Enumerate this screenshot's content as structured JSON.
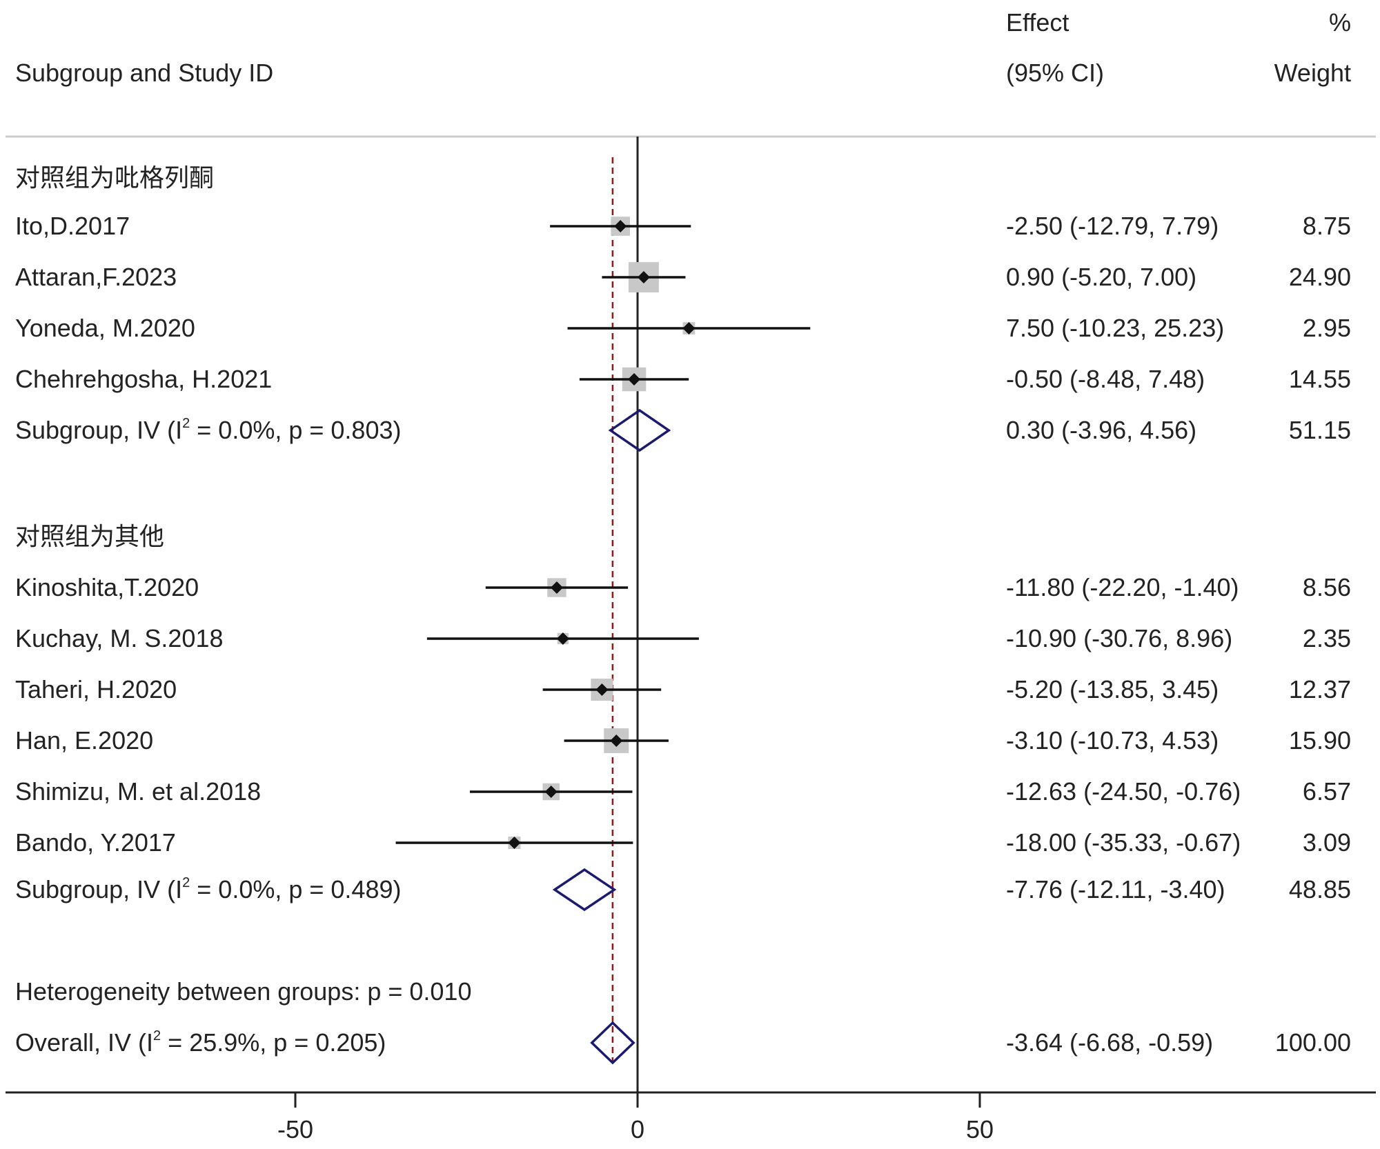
{
  "chart_data": {
    "type": "forest",
    "header": {
      "label_col": "Subgroup and Study ID",
      "effect_line1": "Effect",
      "effect_line2": "(95% CI)",
      "weight_line1": "%",
      "weight_line2": "Weight"
    },
    "x_axis": {
      "range": [
        -92,
        108
      ],
      "ticks": [
        -50,
        0,
        50
      ],
      "tick_labels": [
        "-50",
        "0",
        "50"
      ],
      "null_value": 0,
      "overall_reference": -3.64
    },
    "rows": [
      {
        "kind": "group",
        "label": "对照组为吡格列酮"
      },
      {
        "kind": "study",
        "label": "Ito,D.2017",
        "effect": -2.5,
        "lower": -12.79,
        "upper": 7.79,
        "effect_text": "-2.50 (-12.79, 7.79)",
        "weight": 8.75,
        "weight_text": "8.75"
      },
      {
        "kind": "study",
        "label": "Attaran,F.2023",
        "effect": 0.9,
        "lower": -5.2,
        "upper": 7.0,
        "effect_text": "0.90 (-5.20, 7.00)",
        "weight": 24.9,
        "weight_text": "24.90"
      },
      {
        "kind": "study",
        "label": "Yoneda, M.2020",
        "effect": 7.5,
        "lower": -10.23,
        "upper": 25.23,
        "effect_text": "7.50 (-10.23, 25.23)",
        "weight": 2.95,
        "weight_text": "2.95"
      },
      {
        "kind": "study",
        "label": "Chehrehgosha, H.2021",
        "effect": -0.5,
        "lower": -8.48,
        "upper": 7.48,
        "effect_text": "-0.50 (-8.48, 7.48)",
        "weight": 14.55,
        "weight_text": "14.55"
      },
      {
        "kind": "subtotal",
        "label_pre": "Subgroup, IV (I",
        "label_sup": "2",
        "label_post": " = 0.0%, p = 0.803)",
        "effect": 0.3,
        "lower": -3.96,
        "upper": 4.56,
        "effect_text": "0.30 (-3.96, 4.56)",
        "weight": 51.15,
        "weight_text": "51.15"
      },
      {
        "kind": "blank"
      },
      {
        "kind": "group",
        "label": "对照组为其他"
      },
      {
        "kind": "study",
        "label": "Kinoshita,T.2020",
        "effect": -11.8,
        "lower": -22.2,
        "upper": -1.4,
        "effect_text": "-11.80 (-22.20, -1.40)",
        "weight": 8.56,
        "weight_text": "8.56"
      },
      {
        "kind": "study",
        "label": "Kuchay, M. S.2018",
        "effect": -10.9,
        "lower": -30.76,
        "upper": 8.96,
        "effect_text": "-10.90 (-30.76, 8.96)",
        "weight": 2.35,
        "weight_text": "2.35"
      },
      {
        "kind": "study",
        "label": "Taheri, H.2020",
        "effect": -5.2,
        "lower": -13.85,
        "upper": 3.45,
        "effect_text": "-5.20 (-13.85, 3.45)",
        "weight": 12.37,
        "weight_text": "12.37"
      },
      {
        "kind": "study",
        "label": "Han, E.2020",
        "effect": -3.1,
        "lower": -10.73,
        "upper": 4.53,
        "effect_text": "-3.10 (-10.73, 4.53)",
        "weight": 15.9,
        "weight_text": "15.90"
      },
      {
        "kind": "study",
        "label": "Shimizu, M. et al.2018",
        "effect": -12.63,
        "lower": -24.5,
        "upper": -0.76,
        "effect_text": "-12.63 (-24.50, -0.76)",
        "weight": 6.57,
        "weight_text": "6.57"
      },
      {
        "kind": "study",
        "label": "Bando, Y.2017",
        "effect": -18.0,
        "lower": -35.33,
        "upper": -0.67,
        "effect_text": "-18.00 (-35.33, -0.67)",
        "weight": 3.09,
        "weight_text": "3.09"
      },
      {
        "kind": "subtotal",
        "label_pre": "Subgroup, IV (I",
        "label_sup": "2",
        "label_post": " = 0.0%, p = 0.489)",
        "effect": -7.76,
        "lower": -12.11,
        "upper": -3.4,
        "effect_text": "-7.76 (-12.11, -3.40)",
        "weight": 48.85,
        "weight_text": "48.85"
      },
      {
        "kind": "blank"
      },
      {
        "kind": "note",
        "label": "Heterogeneity between groups: p = 0.010"
      },
      {
        "kind": "overall",
        "label_pre": "Overall, IV (I",
        "label_sup": "2",
        "label_post": " = 25.9%, p = 0.205)",
        "effect": -3.64,
        "lower": -6.68,
        "upper": -0.59,
        "effect_text": "-3.64 (-6.68, -0.59)",
        "weight": 100.0,
        "weight_text": "100.00"
      }
    ],
    "colors": {
      "text": "#222222",
      "ci_line": "#111111",
      "marker": "#111111",
      "weight_box": "#c8c8c8",
      "diamond": "#1a1a6e",
      "reference_line": "#8b1a1a",
      "axis": "#222222",
      "header_rule": "#cccccc"
    }
  }
}
